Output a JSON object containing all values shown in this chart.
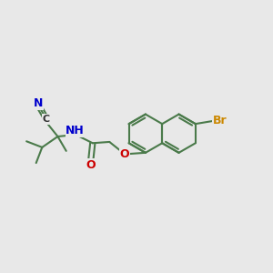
{
  "background_color": "#e8e8e8",
  "bond_color": "#4a7a4a",
  "bond_width": 1.5,
  "atom_colors": {
    "N": "#0000cc",
    "O": "#cc0000",
    "C": "#333333",
    "Br": "#cc8800"
  },
  "figsize": [
    3.0,
    3.0
  ],
  "dpi": 100,
  "xlim": [
    -1.0,
    3.5
  ],
  "ylim": [
    -1.2,
    1.2
  ]
}
